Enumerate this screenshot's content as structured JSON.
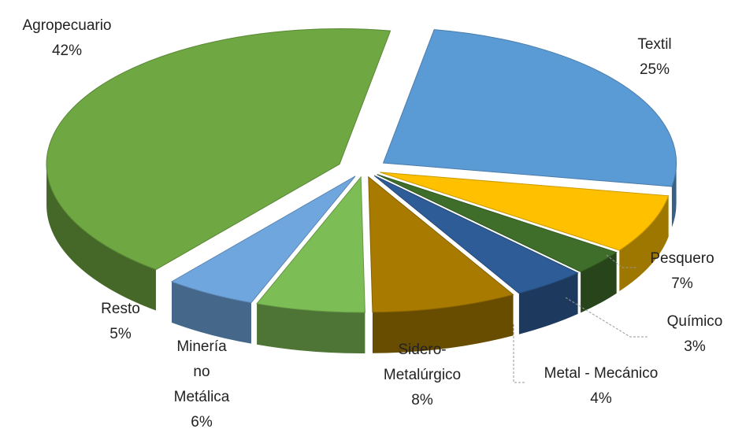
{
  "chart_data": {
    "type": "pie",
    "style": "3d-exploded",
    "title": "",
    "unit": "%",
    "slices": [
      {
        "label": "Textil",
        "label_lines": [
          "Textil",
          "25%"
        ],
        "value": 25,
        "color": "#5b9bd5"
      },
      {
        "label": "Pesquero",
        "label_lines": [
          "Pesquero",
          "7%"
        ],
        "value": 7,
        "color": "#ffc000"
      },
      {
        "label": "Químico",
        "label_lines": [
          "Químico",
          "3%"
        ],
        "value": 3,
        "color": "#3f6e2a"
      },
      {
        "label": "Metal - Mecánico",
        "label_lines": [
          "Metal - Mecánico",
          "4%"
        ],
        "value": 4,
        "color": "#2e5c96"
      },
      {
        "label": "Sidero-Metalúrgico",
        "label_lines": [
          "Sidero-",
          "Metalúrgico",
          "8%"
        ],
        "value": 8,
        "color": "#a87a00"
      },
      {
        "label": "Minería no Metálica",
        "label_lines": [
          "Minería",
          "no",
          "Metálica",
          "6%"
        ],
        "value": 6,
        "color": "#7dbd55"
      },
      {
        "label": "Resto",
        "label_lines": [
          "Resto",
          "5%"
        ],
        "value": 5,
        "color": "#70a6de"
      },
      {
        "label": "Agropecuario",
        "label_lines": [
          "Agropecuario",
          "42%"
        ],
        "value": 42,
        "color": "#6fa842"
      }
    ]
  }
}
